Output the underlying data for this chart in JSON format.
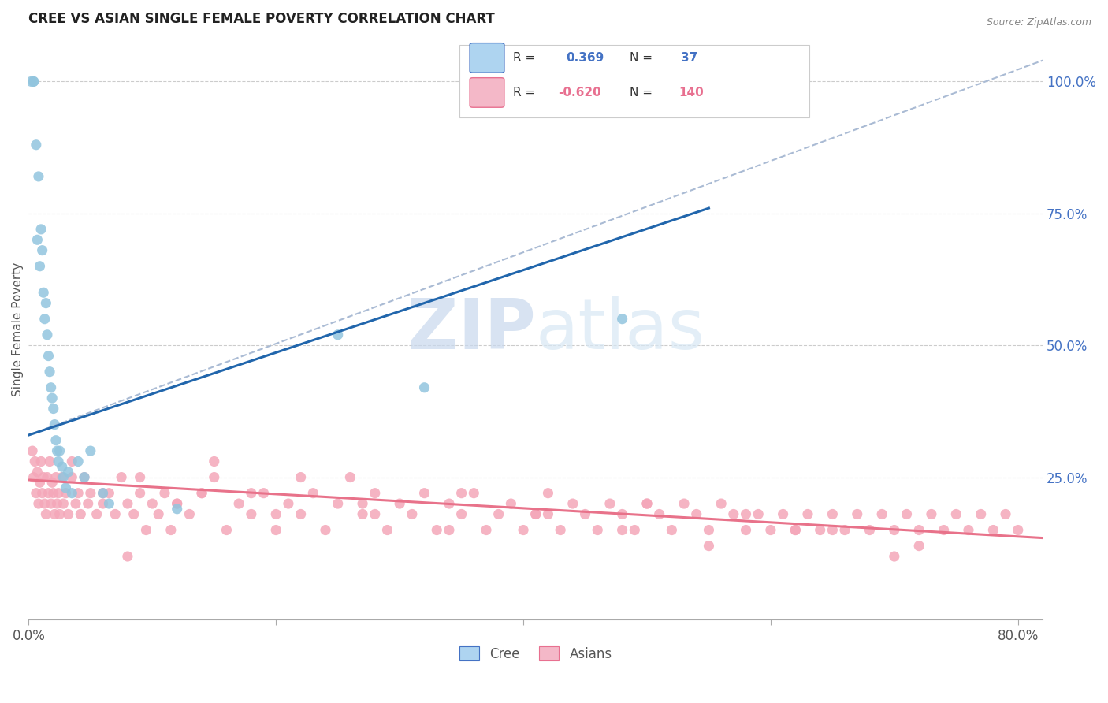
{
  "title": "CREE VS ASIAN SINGLE FEMALE POVERTY CORRELATION CHART",
  "source": "Source: ZipAtlas.com",
  "ylabel": "Single Female Poverty",
  "xlim": [
    0.0,
    0.82
  ],
  "ylim": [
    -0.02,
    1.08
  ],
  "watermark_zip": "ZIP",
  "watermark_atlas": "atlas",
  "cree_R": 0.369,
  "cree_N": 37,
  "asian_R": -0.62,
  "asian_N": 140,
  "cree_color": "#92C5DE",
  "asian_color": "#F4A7B9",
  "cree_line_color": "#2166AC",
  "asian_line_color": "#E8728A",
  "dashed_line_color": "#AABBD4",
  "grid_color": "#CCCCCC",
  "background_color": "#FFFFFF",
  "cree_points_x": [
    0.002,
    0.004,
    0.004,
    0.006,
    0.007,
    0.008,
    0.009,
    0.01,
    0.011,
    0.012,
    0.013,
    0.014,
    0.015,
    0.016,
    0.017,
    0.018,
    0.019,
    0.02,
    0.021,
    0.022,
    0.023,
    0.024,
    0.025,
    0.027,
    0.028,
    0.03,
    0.032,
    0.035,
    0.04,
    0.045,
    0.05,
    0.06,
    0.065,
    0.12,
    0.25,
    0.32,
    0.48
  ],
  "cree_points_y": [
    1.0,
    1.0,
    1.0,
    0.88,
    0.7,
    0.82,
    0.65,
    0.72,
    0.68,
    0.6,
    0.55,
    0.58,
    0.52,
    0.48,
    0.45,
    0.42,
    0.4,
    0.38,
    0.35,
    0.32,
    0.3,
    0.28,
    0.3,
    0.27,
    0.25,
    0.23,
    0.26,
    0.22,
    0.28,
    0.25,
    0.3,
    0.22,
    0.2,
    0.19,
    0.52,
    0.42,
    0.55
  ],
  "asian_points_x": [
    0.003,
    0.004,
    0.005,
    0.006,
    0.007,
    0.008,
    0.009,
    0.01,
    0.011,
    0.012,
    0.013,
    0.014,
    0.015,
    0.016,
    0.017,
    0.018,
    0.019,
    0.02,
    0.021,
    0.022,
    0.023,
    0.024,
    0.025,
    0.027,
    0.028,
    0.03,
    0.032,
    0.035,
    0.038,
    0.04,
    0.042,
    0.045,
    0.048,
    0.05,
    0.055,
    0.06,
    0.065,
    0.07,
    0.075,
    0.08,
    0.085,
    0.09,
    0.095,
    0.1,
    0.105,
    0.11,
    0.115,
    0.12,
    0.13,
    0.14,
    0.15,
    0.16,
    0.17,
    0.18,
    0.19,
    0.2,
    0.21,
    0.22,
    0.23,
    0.24,
    0.25,
    0.26,
    0.27,
    0.28,
    0.29,
    0.3,
    0.31,
    0.32,
    0.33,
    0.34,
    0.35,
    0.36,
    0.37,
    0.38,
    0.39,
    0.4,
    0.41,
    0.42,
    0.43,
    0.44,
    0.45,
    0.46,
    0.47,
    0.48,
    0.49,
    0.5,
    0.51,
    0.52,
    0.53,
    0.54,
    0.55,
    0.56,
    0.57,
    0.58,
    0.59,
    0.6,
    0.61,
    0.62,
    0.63,
    0.64,
    0.65,
    0.66,
    0.67,
    0.68,
    0.69,
    0.7,
    0.71,
    0.72,
    0.73,
    0.74,
    0.75,
    0.76,
    0.77,
    0.78,
    0.79,
    0.8,
    0.035,
    0.06,
    0.09,
    0.12,
    0.15,
    0.18,
    0.22,
    0.28,
    0.35,
    0.42,
    0.5,
    0.58,
    0.65,
    0.72,
    0.08,
    0.14,
    0.2,
    0.27,
    0.34,
    0.41,
    0.48,
    0.55,
    0.62,
    0.7
  ],
  "asian_points_y": [
    0.3,
    0.25,
    0.28,
    0.22,
    0.26,
    0.2,
    0.24,
    0.28,
    0.22,
    0.25,
    0.2,
    0.18,
    0.25,
    0.22,
    0.28,
    0.2,
    0.24,
    0.22,
    0.18,
    0.25,
    0.2,
    0.22,
    0.18,
    0.25,
    0.2,
    0.22,
    0.18,
    0.25,
    0.2,
    0.22,
    0.18,
    0.25,
    0.2,
    0.22,
    0.18,
    0.2,
    0.22,
    0.18,
    0.25,
    0.2,
    0.18,
    0.22,
    0.15,
    0.2,
    0.18,
    0.22,
    0.15,
    0.2,
    0.18,
    0.22,
    0.25,
    0.15,
    0.2,
    0.18,
    0.22,
    0.15,
    0.2,
    0.18,
    0.22,
    0.15,
    0.2,
    0.25,
    0.18,
    0.22,
    0.15,
    0.2,
    0.18,
    0.22,
    0.15,
    0.2,
    0.18,
    0.22,
    0.15,
    0.18,
    0.2,
    0.15,
    0.18,
    0.22,
    0.15,
    0.2,
    0.18,
    0.15,
    0.2,
    0.18,
    0.15,
    0.2,
    0.18,
    0.15,
    0.2,
    0.18,
    0.15,
    0.2,
    0.18,
    0.15,
    0.18,
    0.15,
    0.18,
    0.15,
    0.18,
    0.15,
    0.18,
    0.15,
    0.18,
    0.15,
    0.18,
    0.15,
    0.18,
    0.15,
    0.18,
    0.15,
    0.18,
    0.15,
    0.18,
    0.15,
    0.18,
    0.15,
    0.28,
    0.22,
    0.25,
    0.2,
    0.28,
    0.22,
    0.25,
    0.18,
    0.22,
    0.18,
    0.2,
    0.18,
    0.15,
    0.12,
    0.1,
    0.22,
    0.18,
    0.2,
    0.15,
    0.18,
    0.15,
    0.12,
    0.15,
    0.1
  ],
  "cree_line_x0": 0.0,
  "cree_line_x1": 0.55,
  "cree_line_y0": 0.33,
  "cree_line_y1": 0.76,
  "dash_line_x0": 0.0,
  "dash_line_x1": 0.82,
  "dash_line_y0": 0.33,
  "dash_line_y1": 1.04,
  "asian_line_x0": 0.0,
  "asian_line_x1": 0.82,
  "asian_line_y0": 0.245,
  "asian_line_y1": 0.135
}
